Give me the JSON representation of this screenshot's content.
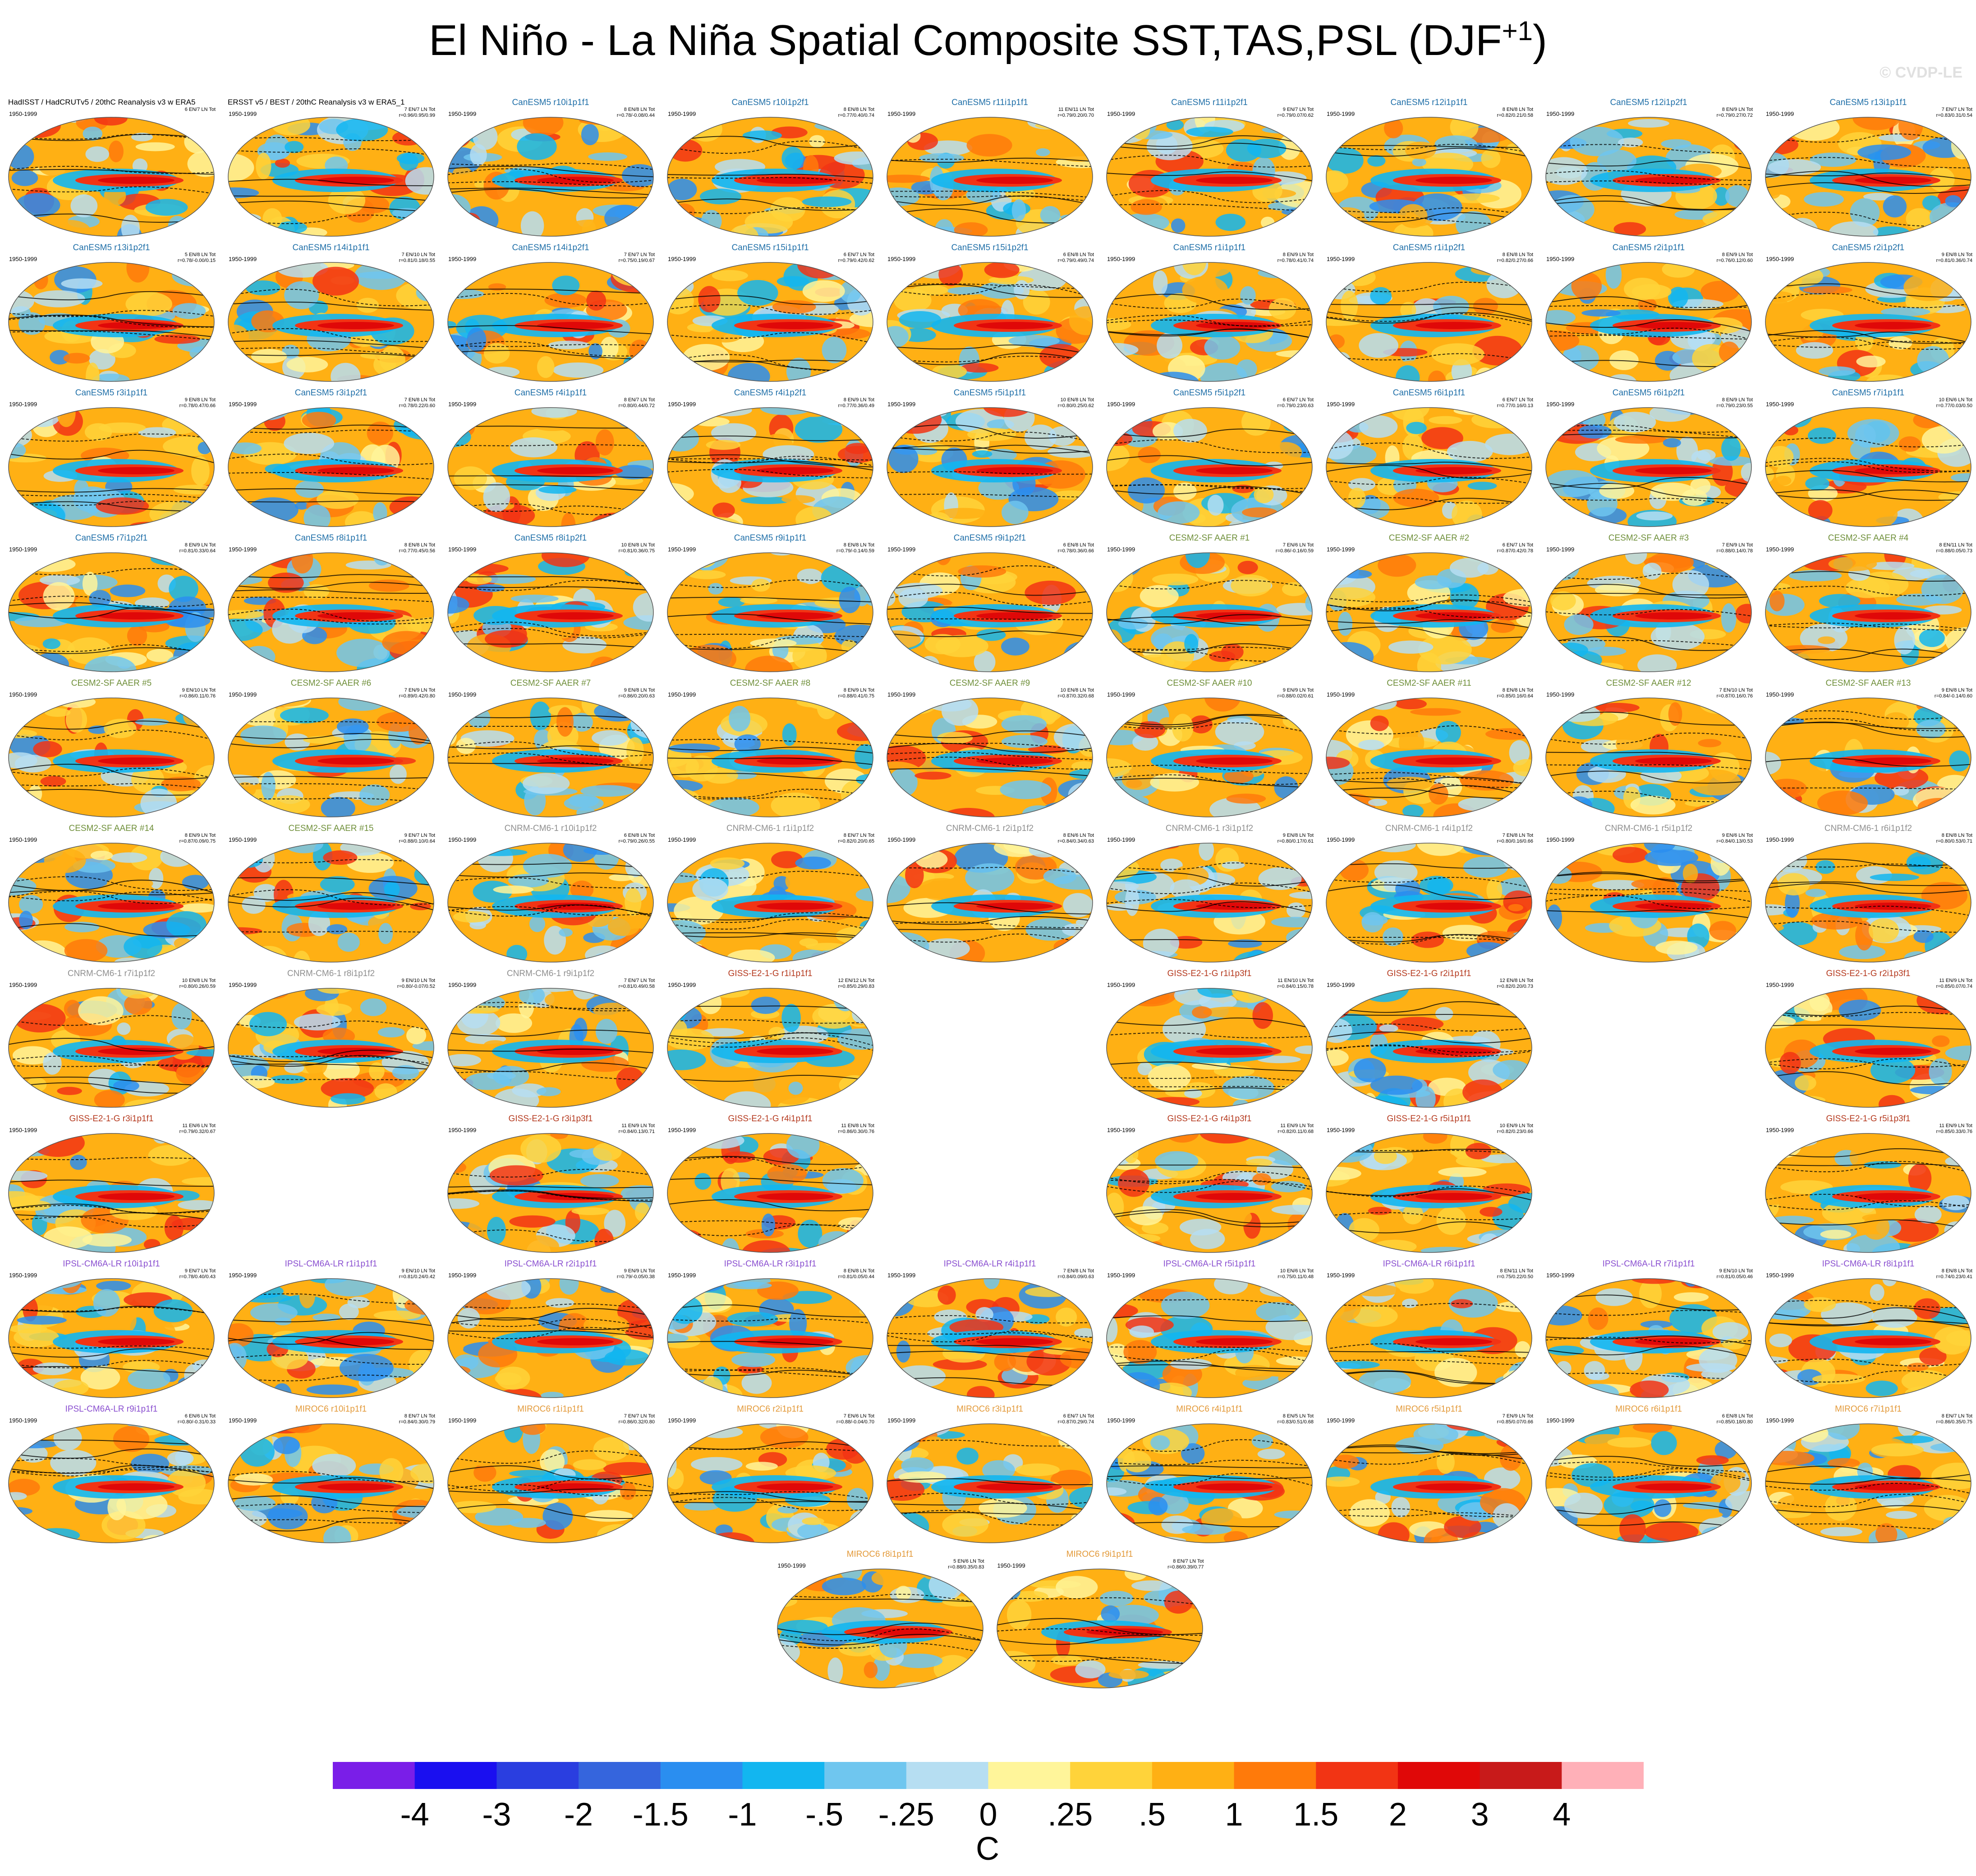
{
  "title": "El Niño - La Niña Spatial Composite SST,TAS,PSL (DJF",
  "title_superscript": "+1",
  "title_suffix": ")",
  "watermark": "© CVDP-LE",
  "model_colors": {
    "OBS": "#000000",
    "CanESM5": "#1f6fa8",
    "CESM2-SF AAER": "#6f8f3a",
    "CNRM-CM6-1": "#8f8f8f",
    "GISS-E2-1-G": "#b53a1f",
    "IPSL-CM6A-LR": "#8a4fd0",
    "MIROC6": "#e39a3a"
  },
  "chart_data": {
    "type": "heatmap",
    "description_variable": "composite anomaly maps",
    "period_label": "1950-1999",
    "colorbar": {
      "units": "C",
      "ticks": [
        "-4",
        "-3",
        "-2",
        "-1.5",
        "-1",
        "-.5",
        "-.25",
        "0",
        ".25",
        ".5",
        "1",
        "1.5",
        "2",
        "3",
        "4"
      ],
      "colors": [
        "#7a1ee8",
        "#1a0ff0",
        "#2a3ee0",
        "#3565dd",
        "#2a8ef0",
        "#12b6f0",
        "#6fc6ef",
        "#b6def2",
        "#fff59a",
        "#ffd33a",
        "#ffb014",
        "#ff7a0a",
        "#f23414",
        "#e00808",
        "#c81a1a",
        "#ffb0b8"
      ]
    },
    "panels": [
      {
        "row": 0,
        "col": 0,
        "title": "HadISST / HadCRUTv5 / 20thC Reanalysis v3 w ERA5",
        "model": "OBS",
        "stats": "6 EN/7 LN Tot"
      },
      {
        "row": 0,
        "col": 1,
        "title": "ERSST v5 / BEST / 20thC Reanalysis v3 w ERA5_1",
        "model": "OBS",
        "stats": "7 EN/7 LN Tot\nr=0.96/0.95/0.99"
      },
      {
        "row": 0,
        "col": 2,
        "title": "CanESM5 r10i1p1f1",
        "model": "CanESM5",
        "stats": "8 EN/8 LN Tot\nr=0.78/-0.08/0.44"
      },
      {
        "row": 0,
        "col": 3,
        "title": "CanESM5 r10i1p2f1",
        "model": "CanESM5",
        "stats": "8 EN/8 LN Tot\nr=0.77/0.40/0.74"
      },
      {
        "row": 0,
        "col": 4,
        "title": "CanESM5 r11i1p1f1",
        "model": "CanESM5",
        "stats": "11 EN/11 LN Tot\nr=0.79/0.20/0.70"
      },
      {
        "row": 0,
        "col": 5,
        "title": "CanESM5 r11i1p2f1",
        "model": "CanESM5",
        "stats": "9 EN/7 LN Tot\nr=0.79/0.07/0.62"
      },
      {
        "row": 0,
        "col": 6,
        "title": "CanESM5 r12i1p1f1",
        "model": "CanESM5",
        "stats": "8 EN/8 LN Tot\nr=0.82/0.21/0.58"
      },
      {
        "row": 0,
        "col": 7,
        "title": "CanESM5 r12i1p2f1",
        "model": "CanESM5",
        "stats": "8 EN/9 LN Tot\nr=0.79/0.27/0.72"
      },
      {
        "row": 0,
        "col": 8,
        "title": "CanESM5 r13i1p1f1",
        "model": "CanESM5",
        "stats": "7 EN/7 LN Tot\nr=0.83/0.31/0.54"
      },
      {
        "row": 1,
        "col": 0,
        "title": "CanESM5 r13i1p2f1",
        "model": "CanESM5",
        "stats": "5 EN/8 LN Tot\nr=0.78/-0.00/0.15"
      },
      {
        "row": 1,
        "col": 1,
        "title": "CanESM5 r14i1p1f1",
        "model": "CanESM5",
        "stats": "7 EN/10 LN Tot\nr=0.81/0.18/0.55"
      },
      {
        "row": 1,
        "col": 2,
        "title": "CanESM5 r14i1p2f1",
        "model": "CanESM5",
        "stats": "7 EN/7 LN Tot\nr=0.75/0.19/0.67"
      },
      {
        "row": 1,
        "col": 3,
        "title": "CanESM5 r15i1p1f1",
        "model": "CanESM5",
        "stats": "6 EN/7 LN Tot\nr=0.79/0.42/0.62"
      },
      {
        "row": 1,
        "col": 4,
        "title": "CanESM5 r15i1p2f1",
        "model": "CanESM5",
        "stats": "6 EN/8 LN Tot\nr=0.79/0.49/0.74"
      },
      {
        "row": 1,
        "col": 5,
        "title": "CanESM5 r1i1p1f1",
        "model": "CanESM5",
        "stats": "8 EN/9 LN Tot\nr=0.78/0.41/0.74"
      },
      {
        "row": 1,
        "col": 6,
        "title": "CanESM5 r1i1p2f1",
        "model": "CanESM5",
        "stats": "8 EN/8 LN Tot\nr=0.82/0.27/0.66"
      },
      {
        "row": 1,
        "col": 7,
        "title": "CanESM5 r2i1p1f1",
        "model": "CanESM5",
        "stats": "8 EN/9 LN Tot\nr=0.76/0.12/0.60"
      },
      {
        "row": 1,
        "col": 8,
        "title": "CanESM5 r2i1p2f1",
        "model": "CanESM5",
        "stats": "9 EN/8 LN Tot\nr=0.81/0.36/0.74"
      },
      {
        "row": 2,
        "col": 0,
        "title": "CanESM5 r3i1p1f1",
        "model": "CanESM5",
        "stats": "9 EN/8 LN Tot\nr=0.78/0.47/0.66"
      },
      {
        "row": 2,
        "col": 1,
        "title": "CanESM5 r3i1p2f1",
        "model": "CanESM5",
        "stats": "7 EN/8 LN Tot\nr=0.78/0.22/0.60"
      },
      {
        "row": 2,
        "col": 2,
        "title": "CanESM5 r4i1p1f1",
        "model": "CanESM5",
        "stats": "8 EN/7 LN Tot\nr=0.80/0.44/0.72"
      },
      {
        "row": 2,
        "col": 3,
        "title": "CanESM5 r4i1p2f1",
        "model": "CanESM5",
        "stats": "8 EN/9 LN Tot\nr=0.77/0.36/0.49"
      },
      {
        "row": 2,
        "col": 4,
        "title": "CanESM5 r5i1p1f1",
        "model": "CanESM5",
        "stats": "10 EN/8 LN Tot\nr=0.80/0.25/0.62"
      },
      {
        "row": 2,
        "col": 5,
        "title": "CanESM5 r5i1p2f1",
        "model": "CanESM5",
        "stats": "6 EN/7 LN Tot\nr=0.79/0.23/0.63"
      },
      {
        "row": 2,
        "col": 6,
        "title": "CanESM5 r6i1p1f1",
        "model": "CanESM5",
        "stats": "6 EN/7 LN Tot\nr=0.77/0.16/0.13"
      },
      {
        "row": 2,
        "col": 7,
        "title": "CanESM5 r6i1p2f1",
        "model": "CanESM5",
        "stats": "8 EN/9 LN Tot\nr=0.79/0.23/0.55"
      },
      {
        "row": 2,
        "col": 8,
        "title": "CanESM5 r7i1p1f1",
        "model": "CanESM5",
        "stats": "10 EN/6 LN Tot\nr=0.77/0.03/0.50"
      },
      {
        "row": 3,
        "col": 0,
        "title": "CanESM5 r7i1p2f1",
        "model": "CanESM5",
        "stats": "8 EN/9 LN Tot\nr=0.81/0.33/0.64"
      },
      {
        "row": 3,
        "col": 1,
        "title": "CanESM5 r8i1p1f1",
        "model": "CanESM5",
        "stats": "8 EN/8 LN Tot\nr=0.77/0.45/0.56"
      },
      {
        "row": 3,
        "col": 2,
        "title": "CanESM5 r8i1p2f1",
        "model": "CanESM5",
        "stats": "10 EN/8 LN Tot\nr=0.81/0.36/0.75"
      },
      {
        "row": 3,
        "col": 3,
        "title": "CanESM5 r9i1p1f1",
        "model": "CanESM5",
        "stats": "8 EN/8 LN Tot\nr=0.79/-0.14/0.59"
      },
      {
        "row": 3,
        "col": 4,
        "title": "CanESM5 r9i1p2f1",
        "model": "CanESM5",
        "stats": "6 EN/8 LN Tot\nr=0.78/0.36/0.66"
      },
      {
        "row": 3,
        "col": 5,
        "title": "CESM2-SF AAER #1",
        "model": "CESM2-SF AAER",
        "stats": "7 EN/6 LN Tot\nr=0.86/-0.16/0.59"
      },
      {
        "row": 3,
        "col": 6,
        "title": "CESM2-SF AAER #2",
        "model": "CESM2-SF AAER",
        "stats": "6 EN/7 LN Tot\nr=0.87/0.42/0.78"
      },
      {
        "row": 3,
        "col": 7,
        "title": "CESM2-SF AAER #3",
        "model": "CESM2-SF AAER",
        "stats": "7 EN/9 LN Tot\nr=0.88/0.14/0.78"
      },
      {
        "row": 3,
        "col": 8,
        "title": "CESM2-SF AAER #4",
        "model": "CESM2-SF AAER",
        "stats": "8 EN/11 LN Tot\nr=0.88/0.05/0.73"
      },
      {
        "row": 4,
        "col": 0,
        "title": "CESM2-SF AAER #5",
        "model": "CESM2-SF AAER",
        "stats": "9 EN/10 LN Tot\nr=0.86/0.11/0.76"
      },
      {
        "row": 4,
        "col": 1,
        "title": "CESM2-SF AAER #6",
        "model": "CESM2-SF AAER",
        "stats": "7 EN/9 LN Tot\nr=0.89/0.42/0.80"
      },
      {
        "row": 4,
        "col": 2,
        "title": "CESM2-SF AAER #7",
        "model": "CESM2-SF AAER",
        "stats": "9 EN/8 LN Tot\nr=0.86/0.20/0.63"
      },
      {
        "row": 4,
        "col": 3,
        "title": "CESM2-SF AAER #8",
        "model": "CESM2-SF AAER",
        "stats": "8 EN/9 LN Tot\nr=0.88/0.41/0.75"
      },
      {
        "row": 4,
        "col": 4,
        "title": "CESM2-SF AAER #9",
        "model": "CESM2-SF AAER",
        "stats": "10 EN/8 LN Tot\nr=0.87/0.32/0.68"
      },
      {
        "row": 4,
        "col": 5,
        "title": "CESM2-SF AAER #10",
        "model": "CESM2-SF AAER",
        "stats": "9 EN/9 LN Tot\nr=0.88/0.02/0.61"
      },
      {
        "row": 4,
        "col": 6,
        "title": "CESM2-SF AAER #11",
        "model": "CESM2-SF AAER",
        "stats": "8 EN/8 LN Tot\nr=0.85/0.16/0.64"
      },
      {
        "row": 4,
        "col": 7,
        "title": "CESM2-SF AAER #12",
        "model": "CESM2-SF AAER",
        "stats": "7 EN/10 LN Tot\nr=0.87/0.16/0.76"
      },
      {
        "row": 4,
        "col": 8,
        "title": "CESM2-SF AAER #13",
        "model": "CESM2-SF AAER",
        "stats": "9 EN/8 LN Tot\nr=0.84/-0.14/0.60"
      },
      {
        "row": 5,
        "col": 0,
        "title": "CESM2-SF AAER #14",
        "model": "CESM2-SF AAER",
        "stats": "8 EN/9 LN Tot\nr=0.87/0.09/0.75"
      },
      {
        "row": 5,
        "col": 1,
        "title": "CESM2-SF AAER #15",
        "model": "CESM2-SF AAER",
        "stats": "9 EN/7 LN Tot\nr=0.88/0.10/0.64"
      },
      {
        "row": 5,
        "col": 2,
        "title": "CNRM-CM6-1 r10i1p1f2",
        "model": "CNRM-CM6-1",
        "stats": "6 EN/8 LN Tot\nr=0.79/0.26/0.55"
      },
      {
        "row": 5,
        "col": 3,
        "title": "CNRM-CM6-1 r1i1p1f2",
        "model": "CNRM-CM6-1",
        "stats": "8 EN/7 LN Tot\nr=0.82/0.20/0.65"
      },
      {
        "row": 5,
        "col": 4,
        "title": "CNRM-CM6-1 r2i1p1f2",
        "model": "CNRM-CM6-1",
        "stats": "8 EN/6 LN Tot\nr=0.84/0.34/0.63"
      },
      {
        "row": 5,
        "col": 5,
        "title": "CNRM-CM6-1 r3i1p1f2",
        "model": "CNRM-CM6-1",
        "stats": "9 EN/8 LN Tot\nr=0.80/0.17/0.61"
      },
      {
        "row": 5,
        "col": 6,
        "title": "CNRM-CM6-1 r4i1p1f2",
        "model": "CNRM-CM6-1",
        "stats": "7 EN/8 LN Tot\nr=0.80/0.16/0.66"
      },
      {
        "row": 5,
        "col": 7,
        "title": "CNRM-CM6-1 r5i1p1f2",
        "model": "CNRM-CM6-1",
        "stats": "9 EN/6 LN Tot\nr=0.84/0.13/0.53"
      },
      {
        "row": 5,
        "col": 8,
        "title": "CNRM-CM6-1 r6i1p1f2",
        "model": "CNRM-CM6-1",
        "stats": "8 EN/8 LN Tot\nr=0.80/0.53/0.71"
      },
      {
        "row": 6,
        "col": 0,
        "title": "CNRM-CM6-1 r7i1p1f2",
        "model": "CNRM-CM6-1",
        "stats": "10 EN/8 LN Tot\nr=0.80/0.26/0.59"
      },
      {
        "row": 6,
        "col": 1,
        "title": "CNRM-CM6-1 r8i1p1f2",
        "model": "CNRM-CM6-1",
        "stats": "9 EN/10 LN Tot\nr=0.80/-0.07/0.52"
      },
      {
        "row": 6,
        "col": 2,
        "title": "CNRM-CM6-1 r9i1p1f2",
        "model": "CNRM-CM6-1",
        "stats": "7 EN/7 LN Tot\nr=0.81/0.49/0.58"
      },
      {
        "row": 6,
        "col": 3,
        "title": "GISS-E2-1-G r1i1p1f1",
        "model": "GISS-E2-1-G",
        "stats": "12 EN/12 LN Tot\nr=0.85/0.29/0.83"
      },
      {
        "row": 6,
        "col": 5,
        "title": "GISS-E2-1-G r1i1p3f1",
        "model": "GISS-E2-1-G",
        "stats": "11 EN/10 LN Tot\nr=0.84/0.15/0.78"
      },
      {
        "row": 6,
        "col": 6,
        "title": "GISS-E2-1-G r2i1p1f1",
        "model": "GISS-E2-1-G",
        "stats": "12 EN/8 LN Tot\nr=0.82/0.20/0.73"
      },
      {
        "row": 6,
        "col": 8,
        "title": "GISS-E2-1-G r2i1p3f1",
        "model": "GISS-E2-1-G",
        "stats": "11 EN/9 LN Tot\nr=0.85/0.07/0.74"
      },
      {
        "row": 7,
        "col": 0,
        "title": "GISS-E2-1-G r3i1p1f1",
        "model": "GISS-E2-1-G",
        "stats": "11 EN/6 LN Tot\nr=0.79/0.32/0.67"
      },
      {
        "row": 7,
        "col": 2,
        "title": "GISS-E2-1-G r3i1p3f1",
        "model": "GISS-E2-1-G",
        "stats": "11 EN/9 LN Tot\nr=0.84/0.13/0.71"
      },
      {
        "row": 7,
        "col": 3,
        "title": "GISS-E2-1-G r4i1p1f1",
        "model": "GISS-E2-1-G",
        "stats": "11 EN/8 LN Tot\nr=0.86/0.30/0.76"
      },
      {
        "row": 7,
        "col": 5,
        "title": "GISS-E2-1-G r4i1p3f1",
        "model": "GISS-E2-1-G",
        "stats": "11 EN/9 LN Tot\nr=0.82/0.11/0.68"
      },
      {
        "row": 7,
        "col": 6,
        "title": "GISS-E2-1-G r5i1p1f1",
        "model": "GISS-E2-1-G",
        "stats": "10 EN/9 LN Tot\nr=0.82/0.23/0.66"
      },
      {
        "row": 7,
        "col": 8,
        "title": "GISS-E2-1-G r5i1p3f1",
        "model": "GISS-E2-1-G",
        "stats": "11 EN/9 LN Tot\nr=0.85/0.33/0.76"
      },
      {
        "row": 8,
        "col": 0,
        "title": "IPSL-CM6A-LR r10i1p1f1",
        "model": "IPSL-CM6A-LR",
        "stats": "9 EN/7 LN Tot\nr=0.78/0.40/0.43"
      },
      {
        "row": 8,
        "col": 1,
        "title": "IPSL-CM6A-LR r1i1p1f1",
        "model": "IPSL-CM6A-LR",
        "stats": "9 EN/10 LN Tot\nr=0.81/0.24/0.42"
      },
      {
        "row": 8,
        "col": 2,
        "title": "IPSL-CM6A-LR r2i1p1f1",
        "model": "IPSL-CM6A-LR",
        "stats": "9 EN/9 LN Tot\nr=0.79/-0.05/0.38"
      },
      {
        "row": 8,
        "col": 3,
        "title": "IPSL-CM6A-LR r3i1p1f1",
        "model": "IPSL-CM6A-LR",
        "stats": "8 EN/8 LN Tot\nr=0.81/0.05/0.44"
      },
      {
        "row": 8,
        "col": 4,
        "title": "IPSL-CM6A-LR r4i1p1f1",
        "model": "IPSL-CM6A-LR",
        "stats": "7 EN/8 LN Tot\nr=0.84/0.09/0.63"
      },
      {
        "row": 8,
        "col": 5,
        "title": "IPSL-CM6A-LR r5i1p1f1",
        "model": "IPSL-CM6A-LR",
        "stats": "10 EN/6 LN Tot\nr=0.75/0.11/0.48"
      },
      {
        "row": 8,
        "col": 6,
        "title": "IPSL-CM6A-LR r6i1p1f1",
        "model": "IPSL-CM6A-LR",
        "stats": "8 EN/11 LN Tot\nr=0.75/0.22/0.50"
      },
      {
        "row": 8,
        "col": 7,
        "title": "IPSL-CM6A-LR r7i1p1f1",
        "model": "IPSL-CM6A-LR",
        "stats": "9 EN/10 LN Tot\nr=0.81/0.05/0.46"
      },
      {
        "row": 8,
        "col": 8,
        "title": "IPSL-CM6A-LR r8i1p1f1",
        "model": "IPSL-CM6A-LR",
        "stats": "8 EN/8 LN Tot\nr=0.74/0.23/0.41"
      },
      {
        "row": 9,
        "col": 0,
        "title": "IPSL-CM6A-LR r9i1p1f1",
        "model": "IPSL-CM6A-LR",
        "stats": "6 EN/6 LN Tot\nr=0.80/-0.31/0.33"
      },
      {
        "row": 9,
        "col": 1,
        "title": "MIROC6 r10i1p1f1",
        "model": "MIROC6",
        "stats": "8 EN/7 LN Tot\nr=0.84/0.30/0.79"
      },
      {
        "row": 9,
        "col": 2,
        "title": "MIROC6 r1i1p1f1",
        "model": "MIROC6",
        "stats": "7 EN/7 LN Tot\nr=0.86/0.32/0.80"
      },
      {
        "row": 9,
        "col": 3,
        "title": "MIROC6 r2i1p1f1",
        "model": "MIROC6",
        "stats": "7 EN/6 LN Tot\nr=0.88/-0.04/0.70"
      },
      {
        "row": 9,
        "col": 4,
        "title": "MIROC6 r3i1p1f1",
        "model": "MIROC6",
        "stats": "6 EN/7 LN Tot\nr=0.87/0.29/0.74"
      },
      {
        "row": 9,
        "col": 5,
        "title": "MIROC6 r4i1p1f1",
        "model": "MIROC6",
        "stats": "8 EN/5 LN Tot\nr=0.83/0.51/0.68"
      },
      {
        "row": 9,
        "col": 6,
        "title": "MIROC6 r5i1p1f1",
        "model": "MIROC6",
        "stats": "7 EN/9 LN Tot\nr=0.85/0.07/0.66"
      },
      {
        "row": 9,
        "col": 7,
        "title": "MIROC6 r6i1p1f1",
        "model": "MIROC6",
        "stats": "6 EN/8 LN Tot\nr=0.85/0.18/0.80"
      },
      {
        "row": 9,
        "col": 8,
        "title": "MIROC6 r7i1p1f1",
        "model": "MIROC6",
        "stats": "8 EN/7 LN Tot\nr=0.86/0.35/0.75"
      },
      {
        "row": 10,
        "col": 3.5,
        "title": "MIROC6 r8i1p1f1",
        "model": "MIROC6",
        "stats": "5 EN/6 LN Tot\nr=0.88/0.35/0.83"
      },
      {
        "row": 10,
        "col": 4.5,
        "title": "MIROC6 r9i1p1f1",
        "model": "MIROC6",
        "stats": "8 EN/7 LN Tot\nr=0.86/0.39/0.77"
      }
    ]
  }
}
